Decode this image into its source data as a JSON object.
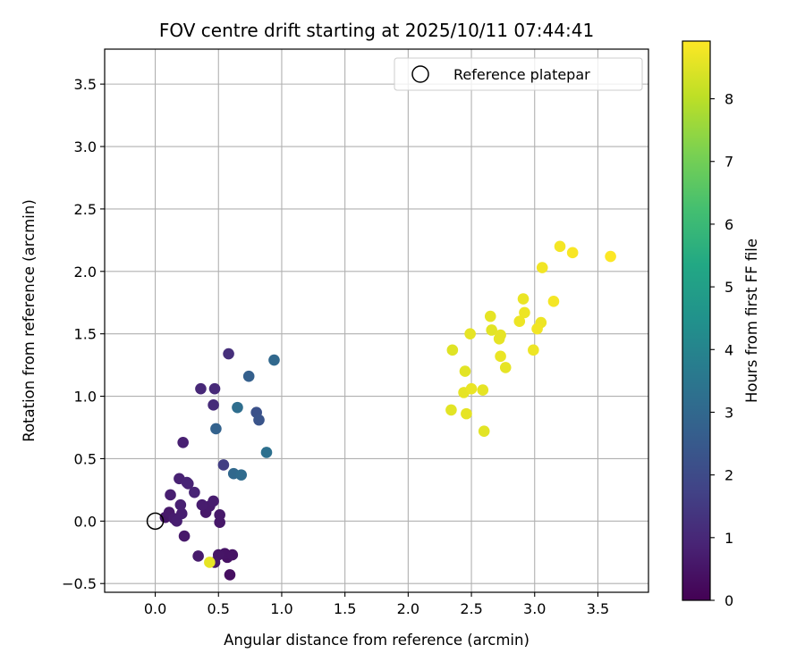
{
  "chart_data": {
    "type": "scatter",
    "title": "FOV centre drift starting at 2025/10/11 07:44:41",
    "xlabel": "Angular distance from reference (arcmin)",
    "ylabel": "Rotation from reference (arcmin)",
    "xlim": [
      -0.4,
      3.9
    ],
    "ylim": [
      -0.57,
      3.78
    ],
    "xticks": [
      0.0,
      0.5,
      1.0,
      1.5,
      2.0,
      2.5,
      3.0,
      3.5
    ],
    "xtick_labels": [
      "0.0",
      "0.5",
      "1.0",
      "1.5",
      "2.0",
      "2.5",
      "3.0",
      "3.5"
    ],
    "yticks": [
      -0.5,
      0.0,
      0.5,
      1.0,
      1.5,
      2.0,
      2.5,
      3.0,
      3.5
    ],
    "ytick_labels": [
      "−0.5",
      "0.0",
      "0.5",
      "1.0",
      "1.5",
      "2.0",
      "2.5",
      "3.0",
      "3.5"
    ],
    "grid": true,
    "legend": {
      "location": "upper-right",
      "entries": [
        "Reference platepar"
      ]
    },
    "reference_point": {
      "x": 0.0,
      "y": 0.0,
      "label": "Reference platepar"
    },
    "colorbar": {
      "label": "Hours from first FF file",
      "colormap": "viridis",
      "range": [
        0,
        8.92
      ],
      "ticks": [
        0,
        1,
        2,
        3,
        4,
        5,
        6,
        7,
        8
      ],
      "tick_labels": [
        "0",
        "1",
        "2",
        "3",
        "4",
        "5",
        "6",
        "7",
        "8"
      ]
    },
    "points": [
      {
        "x": 0.08,
        "y": 0.03,
        "hours": 0.55
      },
      {
        "x": 0.11,
        "y": 0.07,
        "hours": 0.6
      },
      {
        "x": 0.12,
        "y": 0.21,
        "hours": 0.75
      },
      {
        "x": 0.15,
        "y": 0.02,
        "hours": 0.7
      },
      {
        "x": 0.17,
        "y": 0.0,
        "hours": 0.75
      },
      {
        "x": 0.19,
        "y": 0.34,
        "hours": 0.85
      },
      {
        "x": 0.2,
        "y": 0.13,
        "hours": 0.8
      },
      {
        "x": 0.21,
        "y": 0.06,
        "hours": 0.75
      },
      {
        "x": 0.22,
        "y": 0.63,
        "hours": 0.8
      },
      {
        "x": 0.23,
        "y": -0.12,
        "hours": 0.6
      },
      {
        "x": 0.25,
        "y": 0.31,
        "hours": 0.9
      },
      {
        "x": 0.26,
        "y": 0.3,
        "hours": 0.85
      },
      {
        "x": 0.31,
        "y": 0.23,
        "hours": 0.9
      },
      {
        "x": 0.34,
        "y": -0.28,
        "hours": 0.65
      },
      {
        "x": 0.36,
        "y": 1.06,
        "hours": 1.0
      },
      {
        "x": 0.37,
        "y": 0.13,
        "hours": 0.7
      },
      {
        "x": 0.4,
        "y": 0.07,
        "hours": 0.6
      },
      {
        "x": 0.43,
        "y": 0.12,
        "hours": 0.65
      },
      {
        "x": 0.46,
        "y": 0.16,
        "hours": 0.7
      },
      {
        "x": 0.46,
        "y": 0.93,
        "hours": 1.1
      },
      {
        "x": 0.47,
        "y": 1.06,
        "hours": 1.05
      },
      {
        "x": 0.47,
        "y": -0.33,
        "hours": 0.55
      },
      {
        "x": 0.48,
        "y": 0.74,
        "hours": 2.8
      },
      {
        "x": 0.5,
        "y": -0.27,
        "hours": 0.5
      },
      {
        "x": 0.51,
        "y": -0.01,
        "hours": 0.55
      },
      {
        "x": 0.51,
        "y": 0.05,
        "hours": 0.6
      },
      {
        "x": 0.54,
        "y": 0.45,
        "hours": 1.6
      },
      {
        "x": 0.55,
        "y": -0.26,
        "hours": 0.45
      },
      {
        "x": 0.57,
        "y": -0.29,
        "hours": 0.4
      },
      {
        "x": 0.58,
        "y": 1.34,
        "hours": 1.2
      },
      {
        "x": 0.59,
        "y": -0.43,
        "hours": 0.35
      },
      {
        "x": 0.61,
        "y": -0.27,
        "hours": 0.45
      },
      {
        "x": 0.62,
        "y": 0.38,
        "hours": 3.0
      },
      {
        "x": 0.65,
        "y": 0.91,
        "hours": 3.2
      },
      {
        "x": 0.68,
        "y": 0.37,
        "hours": 3.1
      },
      {
        "x": 0.74,
        "y": 1.16,
        "hours": 2.7
      },
      {
        "x": 0.8,
        "y": 0.87,
        "hours": 2.2
      },
      {
        "x": 0.82,
        "y": 0.81,
        "hours": 2.3
      },
      {
        "x": 0.88,
        "y": 0.55,
        "hours": 3.3
      },
      {
        "x": 0.94,
        "y": 1.29,
        "hours": 3.0
      },
      {
        "x": 0.43,
        "y": -0.33,
        "hours": 8.6
      },
      {
        "x": 2.34,
        "y": 0.89,
        "hours": 8.55
      },
      {
        "x": 2.35,
        "y": 1.37,
        "hours": 8.5
      },
      {
        "x": 2.44,
        "y": 1.03,
        "hours": 8.6
      },
      {
        "x": 2.45,
        "y": 1.2,
        "hours": 8.55
      },
      {
        "x": 2.46,
        "y": 0.86,
        "hours": 8.6
      },
      {
        "x": 2.49,
        "y": 1.5,
        "hours": 8.6
      },
      {
        "x": 2.5,
        "y": 1.06,
        "hours": 8.65
      },
      {
        "x": 2.59,
        "y": 1.05,
        "hours": 8.6
      },
      {
        "x": 2.6,
        "y": 0.72,
        "hours": 8.55
      },
      {
        "x": 2.65,
        "y": 1.64,
        "hours": 8.6
      },
      {
        "x": 2.66,
        "y": 1.53,
        "hours": 8.55
      },
      {
        "x": 2.72,
        "y": 1.46,
        "hours": 8.6
      },
      {
        "x": 2.73,
        "y": 1.49,
        "hours": 8.6
      },
      {
        "x": 2.73,
        "y": 1.32,
        "hours": 8.65
      },
      {
        "x": 2.77,
        "y": 1.23,
        "hours": 8.6
      },
      {
        "x": 2.88,
        "y": 1.6,
        "hours": 8.7
      },
      {
        "x": 2.91,
        "y": 1.78,
        "hours": 8.65
      },
      {
        "x": 2.92,
        "y": 1.67,
        "hours": 8.7
      },
      {
        "x": 2.99,
        "y": 1.37,
        "hours": 8.7
      },
      {
        "x": 3.02,
        "y": 1.54,
        "hours": 8.75
      },
      {
        "x": 3.05,
        "y": 1.59,
        "hours": 8.7
      },
      {
        "x": 3.06,
        "y": 2.03,
        "hours": 8.75
      },
      {
        "x": 3.15,
        "y": 1.76,
        "hours": 8.8
      },
      {
        "x": 3.2,
        "y": 2.2,
        "hours": 8.8
      },
      {
        "x": 3.3,
        "y": 2.15,
        "hours": 8.85
      },
      {
        "x": 3.6,
        "y": 2.12,
        "hours": 8.9
      }
    ]
  },
  "colors": {
    "grid": "#b0b0b0",
    "axis": "#000000",
    "legend_border": "#cccccc",
    "reference_marker": "#000000"
  }
}
